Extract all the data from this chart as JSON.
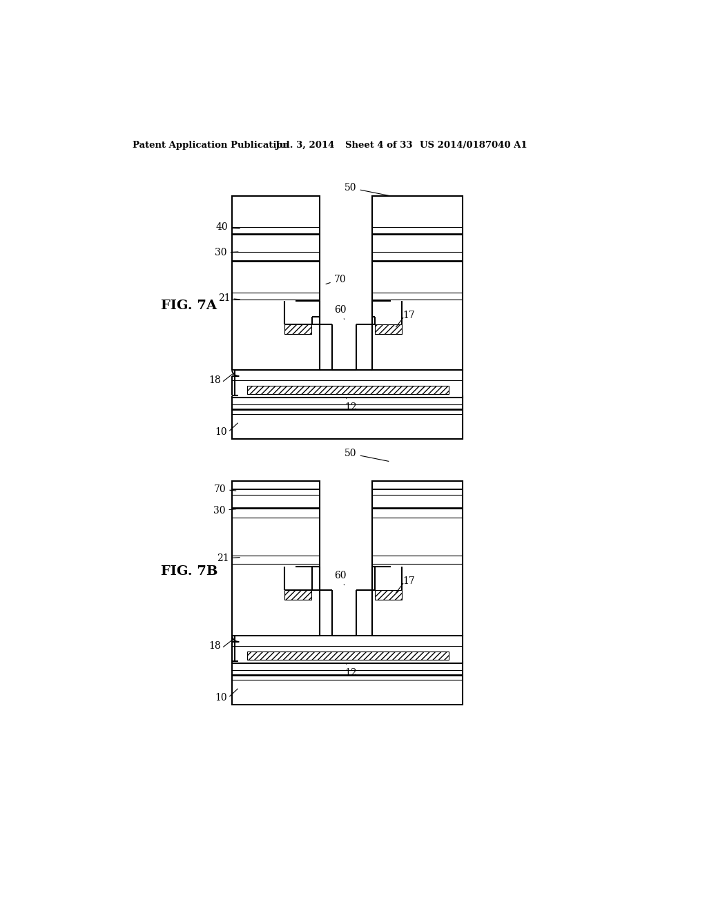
{
  "bg_color": "#ffffff",
  "header_text": "Patent Application Publication",
  "header_date": "Jul. 3, 2014",
  "header_sheet": "Sheet 4 of 33",
  "header_patent": "US 2014/0187040 A1",
  "fig7a_label": "FIG. 7A",
  "fig7b_label": "FIG. 7B",
  "line_color": "#000000",
  "lw": 1.5,
  "thin_lw": 0.8,
  "med_lw": 2.0
}
